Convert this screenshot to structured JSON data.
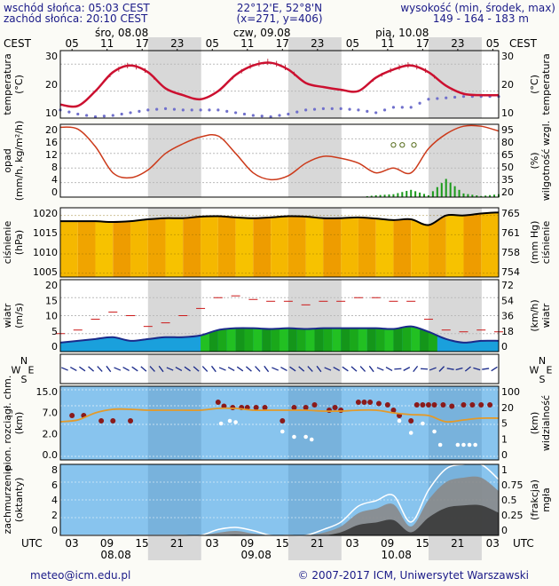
{
  "header": {
    "sunrise": "wschód słońca: 05:03 CEST",
    "sunset": "zachód słońca: 20:10 CEST",
    "coords": "22°12'E, 52°8'N",
    "grid": "(x=271, y=406)",
    "altitude_label": "wysokość (min, środek, max)",
    "altitude_values": "149 - 164 - 183 m"
  },
  "top_axis": {
    "tz": "CEST",
    "days": [
      "śro, 08.08",
      "czw, 09.08",
      "pią, 10.08"
    ],
    "hours": [
      "05",
      "11",
      "17",
      "23",
      "05",
      "11",
      "17",
      "23",
      "05",
      "11",
      "17",
      "23",
      "05"
    ]
  },
  "bottom_axis": {
    "tz": "UTC",
    "days": [
      "08.08",
      "09.08",
      "10.08"
    ],
    "hours": [
      "03",
      "09",
      "15",
      "21",
      "03",
      "09",
      "15",
      "21",
      "03",
      "09",
      "15",
      "21",
      "03"
    ]
  },
  "panels": {
    "temp": {
      "left_label": [
        "temperatura",
        "(°C)"
      ],
      "right_label": [
        "(°C)",
        "temperatura"
      ],
      "ticks": [
        "30",
        "20",
        "10"
      ]
    },
    "precip": {
      "left_label": [
        "opad",
        "(mm/h, kg/m²/h)"
      ],
      "right_label": [
        "(%)",
        "wilgotność wzgl."
      ],
      "left_ticks": [
        "20",
        "16",
        "12",
        "8",
        "4",
        "0"
      ],
      "right_ticks": [
        "95",
        "80",
        "65",
        "50",
        "35",
        "20"
      ]
    },
    "press": {
      "left_label": [
        "ciśnienie",
        "(hPa)"
      ],
      "right_label": [
        "(mm Hg)",
        "ciśnienie"
      ],
      "left_ticks": [
        "1020",
        "1015",
        "1010",
        "1005"
      ],
      "right_ticks": [
        "765",
        "761",
        "758",
        "754"
      ]
    },
    "wind": {
      "left_label": [
        "wiatr",
        "(m/s)"
      ],
      "right_label": [
        "(km/h)",
        "wiatr"
      ],
      "left_ticks": [
        "20",
        "15",
        "10",
        "5",
        "0"
      ],
      "right_ticks": [
        "72",
        "54",
        "36",
        "18",
        "0"
      ]
    },
    "dir": {
      "compass": [
        "N",
        "W",
        "E",
        "S"
      ]
    },
    "cloudbase": {
      "left_label": [
        "pion. rozciągł. chm.",
        "(km)"
      ],
      "right_label": [
        "(km)",
        "widzialność"
      ],
      "left_ticks": [
        "15.0",
        "7.0",
        "2.0",
        "0.0"
      ],
      "right_ticks": [
        "100",
        "20",
        "5",
        "1",
        "0"
      ]
    },
    "cloud": {
      "left_label": [
        "zachmurzenie",
        "(oktanty)"
      ],
      "right_label": [
        "(frakcja)",
        "mgła"
      ],
      "left_ticks": [
        "8",
        "6",
        "4",
        "2",
        "0"
      ],
      "right_ticks": [
        "1",
        "0.75",
        "0.5",
        "0.25",
        "0"
      ]
    }
  },
  "footer": {
    "email": "meteo@icm.edu.pl",
    "copyright": "© 2007-2017 ICM, Uniwersytet Warszawski"
  },
  "colors": {
    "temp_line": "#cc1030",
    "dewpoint": "#7070cc",
    "humidity_line": "#cc3a1a",
    "precip_bar": "#1a9a1a",
    "pressure_line": "#000000",
    "pressure_fill": "#f2a800",
    "wind_area": "#1aa0dc",
    "gust_marks": "#cc1a1a",
    "wind_dir": "#1a2a8a",
    "visibility_line": "#e39a2a",
    "cloud_dots": "#8a1a1a",
    "sky_blue": "#88c4ee",
    "night_band": "#d8d8d8"
  },
  "chart_data": [
    {
      "type": "line",
      "title": "temperatura",
      "ylabel": "temperatura (°C)",
      "ylim": [
        10,
        35
      ],
      "x": [
        "08.08 03",
        "08.08 06",
        "08.08 09",
        "08.08 12",
        "08.08 15",
        "08.08 18",
        "08.08 21",
        "09.08 00",
        "09.08 03",
        "09.08 06",
        "09.08 09",
        "09.08 12",
        "09.08 15",
        "09.08 18",
        "09.08 21",
        "10.08 00",
        "10.08 03",
        "10.08 06",
        "10.08 09",
        "10.08 12",
        "10.08 15",
        "10.08 18",
        "10.08 21",
        "11.08 00",
        "11.08 03",
        "11.08 06"
      ],
      "series": [
        {
          "name": "temperatura",
          "values": [
            15,
            14.5,
            20,
            27,
            29.5,
            27,
            21,
            18.5,
            17,
            20,
            26,
            29.5,
            30.5,
            28,
            23,
            21.5,
            20.5,
            20,
            25,
            28,
            29.5,
            27,
            22,
            19,
            18.5,
            18.5
          ]
        },
        {
          "name": "punkt rosy",
          "values": [
            13,
            11.5,
            10.5,
            11,
            12,
            13,
            13.5,
            13,
            13,
            13,
            12,
            11,
            10.5,
            11.5,
            13,
            13.5,
            13.5,
            13,
            12,
            14,
            14,
            17,
            17.5,
            18,
            18,
            18
          ]
        }
      ]
    },
    {
      "type": "line",
      "title": "opad / wilgotność",
      "ylabel": "opad (mm/h, kg/m²/h)",
      "ylim": [
        0,
        20
      ],
      "x": [
        "08.08 03",
        "08.08 06",
        "08.08 09",
        "08.08 12",
        "08.08 15",
        "08.08 18",
        "08.08 21",
        "09.08 00",
        "09.08 03",
        "09.08 06",
        "09.08 09",
        "09.08 12",
        "09.08 15",
        "09.08 18",
        "09.08 21",
        "10.08 00",
        "10.08 03",
        "10.08 06",
        "10.08 09",
        "10.08 12",
        "10.08 15",
        "10.08 18",
        "10.08 21",
        "11.08 00",
        "11.08 03",
        "11.08 06"
      ],
      "series": [
        {
          "name": "wilgotność wzgl. (%)",
          "values": [
            92,
            90,
            72,
            45,
            40,
            48,
            65,
            75,
            82,
            83,
            65,
            45,
            38,
            42,
            55,
            62,
            60,
            55,
            45,
            50,
            45,
            70,
            85,
            93,
            93,
            88
          ]
        },
        {
          "name": "opad",
          "values": [
            0,
            0,
            0,
            0,
            0,
            0,
            0,
            0,
            0,
            0,
            0,
            0,
            0,
            0,
            0,
            0,
            0,
            0,
            0.5,
            0.8,
            2,
            0.5,
            5,
            1,
            0.3,
            0.8
          ]
        }
      ]
    },
    {
      "type": "line",
      "title": "ciśnienie",
      "ylabel": "ciśnienie (hPa)",
      "ylim": [
        1004,
        1022
      ],
      "x": [
        "08.08 03",
        "08.08 06",
        "08.08 09",
        "08.08 12",
        "08.08 15",
        "08.08 18",
        "08.08 21",
        "09.08 00",
        "09.08 03",
        "09.08 06",
        "09.08 09",
        "09.08 12",
        "09.08 15",
        "09.08 18",
        "09.08 21",
        "10.08 00",
        "10.08 03",
        "10.08 06",
        "10.08 09",
        "10.08 12",
        "10.08 15",
        "10.08 18",
        "10.08 21",
        "11.08 00",
        "11.08 03",
        "11.08 06"
      ],
      "series": [
        {
          "name": "ciśnienie",
          "values": [
            1018.5,
            1018.5,
            1018.5,
            1018.3,
            1018.5,
            1019,
            1019.3,
            1019.3,
            1019.7,
            1019.8,
            1019.5,
            1019.3,
            1019.5,
            1019.8,
            1019.7,
            1019.3,
            1019.3,
            1019.5,
            1019.2,
            1018.8,
            1019,
            1017.5,
            1020,
            1020,
            1020.5,
            1020.8
          ]
        }
      ]
    },
    {
      "type": "area",
      "title": "wiatr",
      "ylabel": "wiatr (m/s)",
      "ylim": [
        0,
        20
      ],
      "x": [
        "08.08 03",
        "08.08 06",
        "08.08 09",
        "08.08 12",
        "08.08 15",
        "08.08 18",
        "08.08 21",
        "09.08 00",
        "09.08 03",
        "09.08 06",
        "09.08 09",
        "09.08 12",
        "09.08 15",
        "09.08 18",
        "09.08 21",
        "10.08 00",
        "10.08 03",
        "10.08 06",
        "10.08 09",
        "10.08 12",
        "10.08 15",
        "10.08 18",
        "10.08 21",
        "11.08 00",
        "11.08 03",
        "11.08 06"
      ],
      "series": [
        {
          "name": "prędkość",
          "values": [
            2.5,
            3,
            3.5,
            4,
            3,
            3.5,
            4,
            4,
            4.5,
            6,
            6.5,
            6.5,
            6.3,
            6.5,
            6.3,
            6.5,
            6.5,
            6.5,
            6.5,
            6.3,
            7,
            5.5,
            3.5,
            2.5,
            3,
            3
          ]
        },
        {
          "name": "porywy",
          "values": [
            5,
            6,
            9,
            11,
            10,
            7,
            8,
            10,
            12,
            15,
            15.5,
            14.5,
            14,
            14,
            13,
            14,
            14,
            15,
            15,
            14,
            14,
            9,
            6,
            5.5,
            6,
            5.5
          ]
        }
      ]
    },
    {
      "type": "line",
      "title": "zachmurzenie",
      "ylabel": "zachmurzenie (oktanty)",
      "ylim": [
        0,
        8
      ],
      "x": [
        "08.08 03",
        "08.08 06",
        "08.08 09",
        "08.08 12",
        "08.08 15",
        "08.08 18",
        "08.08 21",
        "09.08 00",
        "09.08 03",
        "09.08 06",
        "09.08 09",
        "09.08 12",
        "09.08 15",
        "09.08 18",
        "09.08 21",
        "10.08 00",
        "10.08 03",
        "10.08 06",
        "10.08 09",
        "10.08 12",
        "10.08 15",
        "10.08 18",
        "10.08 21",
        "11.08 00",
        "11.08 03",
        "11.08 06"
      ],
      "series": [
        {
          "name": "zachmurzenie",
          "values": [
            0,
            0,
            0,
            0,
            0,
            0,
            0,
            0,
            0,
            0.3,
            0.5,
            0.2,
            0,
            0,
            0,
            0.3,
            1,
            2.5,
            3,
            3.5,
            1,
            4,
            6,
            6.5,
            6.5,
            5
          ]
        }
      ]
    }
  ]
}
